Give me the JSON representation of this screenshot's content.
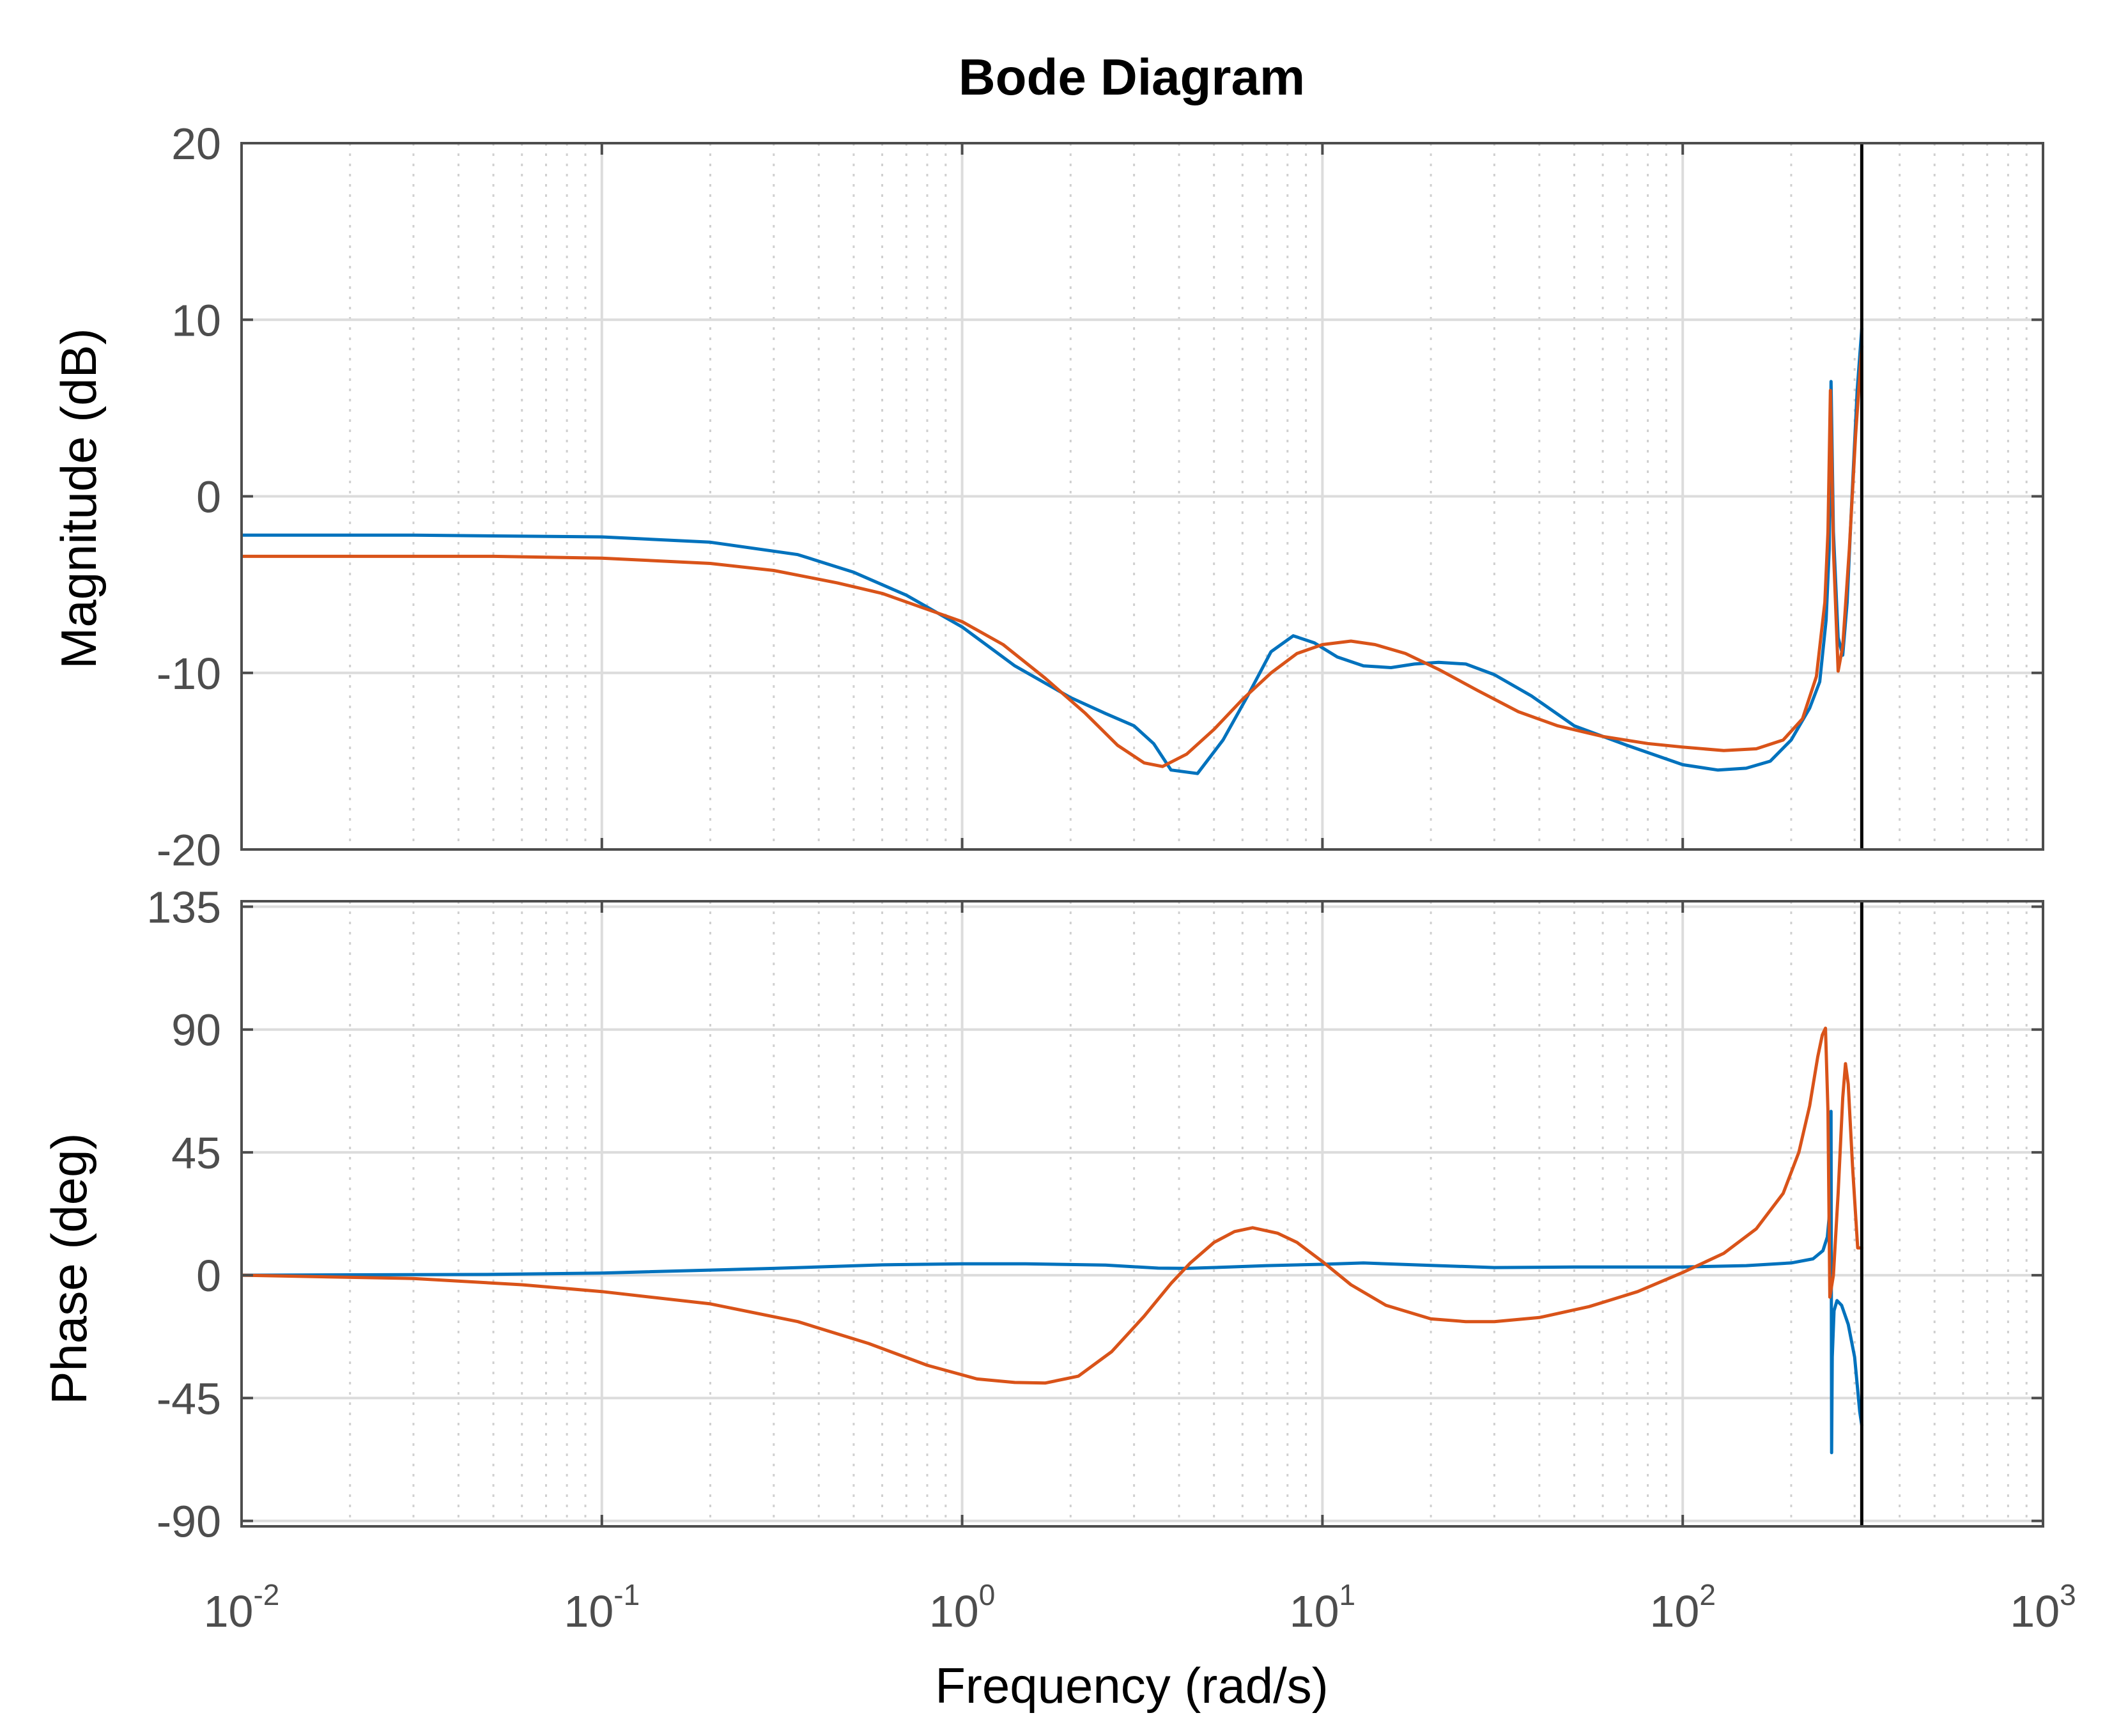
{
  "chart_data": {
    "type": "line",
    "title": "Bode Diagram",
    "xlabel": "Frequency  (rad/s)",
    "x_scale": "log",
    "xlim": [
      0.01,
      1000
    ],
    "x_ticks": [
      {
        "base": "10",
        "exp": "-2",
        "value": 0.01
      },
      {
        "base": "10",
        "exp": "-1",
        "value": 0.1
      },
      {
        "base": "10",
        "exp": "0",
        "value": 1
      },
      {
        "base": "10",
        "exp": "1",
        "value": 10
      },
      {
        "base": "10",
        "exp": "2",
        "value": 100
      },
      {
        "base": "10",
        "exp": "3",
        "value": 1000
      }
    ],
    "nyquist_frequency": 314,
    "grid": true,
    "series_colors": [
      "#0072bd",
      "#d95319"
    ],
    "panels": [
      {
        "id": "magnitude",
        "ylabel": "Magnitude (dB)",
        "ylim": [
          -20,
          20
        ],
        "yticks": [
          {
            "value": 20,
            "label": "20"
          },
          {
            "value": 10,
            "label": "10"
          },
          {
            "value": 0,
            "label": "0"
          },
          {
            "value": -10,
            "label": "-10"
          },
          {
            "value": -20,
            "label": "-20"
          }
        ],
        "series": [
          {
            "name": "blue",
            "points": [
              [
                0.01,
                -2.2
              ],
              [
                0.03,
                -2.2
              ],
              [
                0.1,
                -2.3
              ],
              [
                0.2,
                -2.6
              ],
              [
                0.35,
                -3.3
              ],
              [
                0.5,
                -4.3
              ],
              [
                0.7,
                -5.6
              ],
              [
                1,
                -7.4
              ],
              [
                1.4,
                -9.6
              ],
              [
                2,
                -11.4
              ],
              [
                2.5,
                -12.3
              ],
              [
                3,
                -13
              ],
              [
                3.4,
                -14
              ],
              [
                3.8,
                -15.5
              ],
              [
                4.5,
                -15.7
              ],
              [
                5.3,
                -13.8
              ],
              [
                6.2,
                -11.3
              ],
              [
                7.2,
                -8.8
              ],
              [
                8.3,
                -7.9
              ],
              [
                9.5,
                -8.3
              ],
              [
                11,
                -9.1
              ],
              [
                13,
                -9.6
              ],
              [
                15.5,
                -9.7
              ],
              [
                18,
                -9.5
              ],
              [
                21,
                -9.4
              ],
              [
                25,
                -9.5
              ],
              [
                30,
                -10.1
              ],
              [
                38,
                -11.3
              ],
              [
                50,
                -13
              ],
              [
                70,
                -14.1
              ],
              [
                100,
                -15.2
              ],
              [
                125,
                -15.5
              ],
              [
                150,
                -15.4
              ],
              [
                175,
                -15
              ],
              [
                200,
                -13.8
              ],
              [
                225,
                -12
              ],
              [
                240,
                -10.5
              ],
              [
                250,
                -7
              ],
              [
                255,
                -3
              ],
              [
                258,
                6.5
              ],
              [
                262,
                -2
              ],
              [
                270,
                -8
              ],
              [
                278,
                -9
              ],
              [
                286,
                -6
              ],
              [
                295,
                0
              ],
              [
                305,
                6
              ],
              [
                314,
                9.5
              ]
            ]
          },
          {
            "name": "orange",
            "points": [
              [
                0.01,
                -3.4
              ],
              [
                0.05,
                -3.4
              ],
              [
                0.1,
                -3.5
              ],
              [
                0.2,
                -3.8
              ],
              [
                0.3,
                -4.2
              ],
              [
                0.45,
                -4.9
              ],
              [
                0.6,
                -5.5
              ],
              [
                0.8,
                -6.4
              ],
              [
                1,
                -7.1
              ],
              [
                1.3,
                -8.4
              ],
              [
                1.7,
                -10.3
              ],
              [
                2.2,
                -12.3
              ],
              [
                2.7,
                -14.1
              ],
              [
                3.2,
                -15.1
              ],
              [
                3.6,
                -15.3
              ],
              [
                4.2,
                -14.6
              ],
              [
                5,
                -13.2
              ],
              [
                6,
                -11.5
              ],
              [
                7.2,
                -10
              ],
              [
                8.5,
                -8.9
              ],
              [
                10,
                -8.4
              ],
              [
                12,
                -8.2
              ],
              [
                14,
                -8.4
              ],
              [
                17,
                -8.9
              ],
              [
                21,
                -9.8
              ],
              [
                27,
                -11
              ],
              [
                35,
                -12.2
              ],
              [
                45,
                -13
              ],
              [
                60,
                -13.6
              ],
              [
                80,
                -14
              ],
              [
                100,
                -14.2
              ],
              [
                130,
                -14.4
              ],
              [
                160,
                -14.3
              ],
              [
                190,
                -13.8
              ],
              [
                215,
                -12.6
              ],
              [
                235,
                -10.2
              ],
              [
                248,
                -6
              ],
              [
                253,
                -2
              ],
              [
                257,
                6
              ],
              [
                262,
                -3
              ],
              [
                270,
                -9.9
              ],
              [
                278,
                -8.5
              ],
              [
                290,
                -3
              ],
              [
                302,
                3.5
              ],
              [
                314,
                8.5
              ]
            ]
          }
        ]
      },
      {
        "id": "phase",
        "ylabel": "Phase (deg)",
        "ylim": [
          -92,
          137
        ],
        "yticks": [
          {
            "value": 135,
            "label": "135"
          },
          {
            "value": 90,
            "label": "90"
          },
          {
            "value": 45,
            "label": "45"
          },
          {
            "value": 0,
            "label": "0"
          },
          {
            "value": -45,
            "label": "-45"
          },
          {
            "value": -90,
            "label": "-90"
          }
        ],
        "series": [
          {
            "name": "blue",
            "points": [
              [
                0.01,
                0
              ],
              [
                0.05,
                0.3
              ],
              [
                0.1,
                0.8
              ],
              [
                0.3,
                2.5
              ],
              [
                0.6,
                3.8
              ],
              [
                1,
                4.2
              ],
              [
                1.5,
                4.2
              ],
              [
                2.5,
                3.7
              ],
              [
                3.5,
                2.6
              ],
              [
                4.2,
                2.5
              ],
              [
                5.5,
                3
              ],
              [
                7,
                3.5
              ],
              [
                10,
                4
              ],
              [
                13,
                4.5
              ],
              [
                20,
                3.6
              ],
              [
                30,
                2.8
              ],
              [
                50,
                3
              ],
              [
                70,
                3
              ],
              [
                100,
                3
              ],
              [
                150,
                3.5
              ],
              [
                200,
                4.5
              ],
              [
                230,
                6
              ],
              [
                245,
                9
              ],
              [
                252,
                14
              ],
              [
                256,
                24
              ],
              [
                258,
                60
              ],
              [
                259,
                -65
              ],
              [
                260,
                -30
              ],
              [
                263,
                -13
              ],
              [
                268,
                -9.3
              ],
              [
                276,
                -11
              ],
              [
                288,
                -18
              ],
              [
                300,
                -30
              ],
              [
                310,
                -50
              ],
              [
                314,
                -55
              ]
            ]
          },
          {
            "name": "orange",
            "points": [
              [
                0.01,
                0
              ],
              [
                0.03,
                -1.2
              ],
              [
                0.06,
                -3.5
              ],
              [
                0.1,
                -6
              ],
              [
                0.2,
                -10.5
              ],
              [
                0.35,
                -17
              ],
              [
                0.55,
                -25
              ],
              [
                0.8,
                -33
              ],
              [
                1.1,
                -38
              ],
              [
                1.4,
                -39.3
              ],
              [
                1.7,
                -39.5
              ],
              [
                2.1,
                -37
              ],
              [
                2.6,
                -28
              ],
              [
                3.2,
                -15
              ],
              [
                3.8,
                -3
              ],
              [
                4.3,
                4.5
              ],
              [
                5,
                12
              ],
              [
                5.7,
                16
              ],
              [
                6.4,
                17.4
              ],
              [
                7.5,
                15.4
              ],
              [
                8.5,
                12
              ],
              [
                10,
                5
              ],
              [
                12,
                -3.5
              ],
              [
                15,
                -11
              ],
              [
                20,
                -16
              ],
              [
                25,
                -17
              ],
              [
                30,
                -17
              ],
              [
                40,
                -15.5
              ],
              [
                55,
                -11.5
              ],
              [
                75,
                -6
              ],
              [
                100,
                1
              ],
              [
                130,
                8
              ],
              [
                160,
                17
              ],
              [
                190,
                30
              ],
              [
                210,
                45
              ],
              [
                225,
                62
              ],
              [
                237,
                80
              ],
              [
                244,
                88
              ],
              [
                249,
                90.5
              ],
              [
                253,
                60
              ],
              [
                256,
                -8
              ],
              [
                262,
                0
              ],
              [
                270,
                30
              ],
              [
                278,
                65
              ],
              [
                283,
                77.5
              ],
              [
                288,
                70
              ],
              [
                296,
                40
              ],
              [
                306,
                10
              ],
              [
                314,
                10
              ]
            ]
          }
        ]
      }
    ]
  }
}
